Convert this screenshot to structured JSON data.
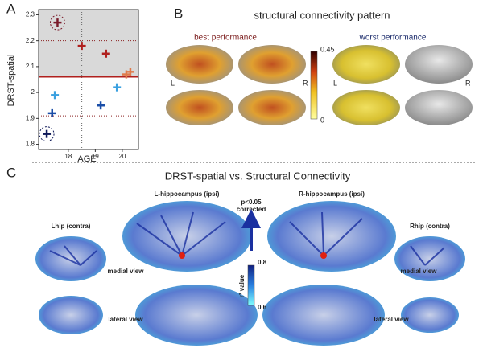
{
  "chart_data": {
    "type": "scatter",
    "panel_label": "A",
    "xlabel": "AGE",
    "ylabel": "DRST-spatial",
    "xlim": [
      16.9,
      20.6
    ],
    "ylim": [
      1.78,
      2.32
    ],
    "xticks": [
      18,
      19,
      20
    ],
    "yticks": [
      1.8,
      1.9,
      2.0,
      2.1,
      2.2,
      2.3
    ],
    "x": [
      17.6,
      18.5,
      19.4,
      20.15,
      20.3,
      19.8,
      19.2,
      17.5,
      17.4,
      17.2
    ],
    "values": [
      2.27,
      2.18,
      2.15,
      2.07,
      2.08,
      2.02,
      1.95,
      1.99,
      1.92,
      1.84
    ],
    "colors": [
      "#7a1a2a",
      "#b0201e",
      "#b0201e",
      "#e07a4a",
      "#e07a4a",
      "#3aa0e0",
      "#1a4ea8",
      "#3aa0e0",
      "#1a4ea8",
      "#101a5a"
    ],
    "circled": [
      0,
      9
    ],
    "threshold": 2.06,
    "threshold_color": "#b0201e",
    "dotted_y": [
      2.2,
      1.91
    ],
    "dotted_x": [
      18.5
    ],
    "shade": "#d9d9d9"
  },
  "panel_b": {
    "label": "B",
    "title": "structural connectivity pattern",
    "best_title": "best performance",
    "worst_title": "worst performance",
    "best_sides": [
      "L",
      "R"
    ],
    "worst_sides": [
      "L",
      "R"
    ],
    "colorbar_ticks": [
      0.45,
      0
    ]
  },
  "panel_c": {
    "label": "C",
    "title": "DRST-spatial vs. Structural Connectivity",
    "left_ipsi": "L-hippocampus (ipsi)",
    "right_ipsi": "R-hippocampus (ipsi)",
    "left_contra": "Lhip (contra)",
    "right_contra": "Rhip (contra)",
    "medial": [
      "medial view",
      "medial view"
    ],
    "lateral": [
      "lateral view",
      "lateral view"
    ],
    "significance": [
      "p<0.05",
      "corrected"
    ],
    "colorbar_label": "r² value",
    "colorbar_ticks": [
      0.8,
      0.6
    ]
  }
}
